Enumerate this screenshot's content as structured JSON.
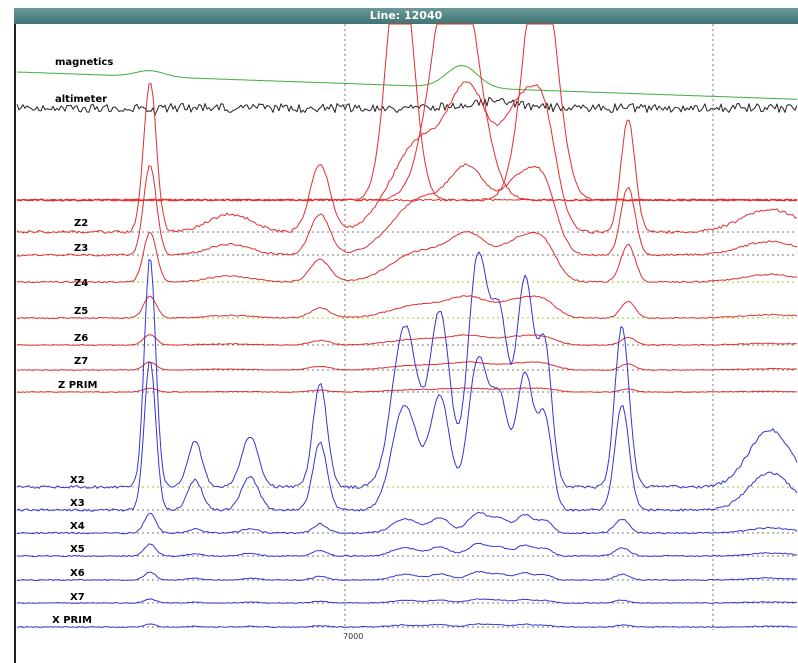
{
  "window": {
    "title": "Line: 12040"
  },
  "chart_data": {
    "type": "line",
    "title": "Line: 12040",
    "x_tick_label": "7000",
    "grid": true,
    "colors": {
      "magnetics": "#3fae3f",
      "altimeter": "#222222",
      "z": "#e03030",
      "x": "#3535d8",
      "grid_dashed": "#7a7a7a",
      "grid_green": "#9acd32"
    },
    "series": [
      {
        "name": "magnetics",
        "group": "mag"
      },
      {
        "name": "altimeter",
        "group": "alt"
      },
      {
        "name": "Z2",
        "group": "z"
      },
      {
        "name": "Z3",
        "group": "z"
      },
      {
        "name": "Z4",
        "group": "z"
      },
      {
        "name": "Z5",
        "group": "z"
      },
      {
        "name": "Z6",
        "group": "z"
      },
      {
        "name": "Z7",
        "group": "z"
      },
      {
        "name": "Z PRIM",
        "group": "z"
      },
      {
        "name": "X2",
        "group": "x"
      },
      {
        "name": "X3",
        "group": "x"
      },
      {
        "name": "X4",
        "group": "x"
      },
      {
        "name": "X5",
        "group": "x"
      },
      {
        "name": "X6",
        "group": "x"
      },
      {
        "name": "X7",
        "group": "x"
      },
      {
        "name": "X PRIM",
        "group": "x"
      }
    ]
  }
}
